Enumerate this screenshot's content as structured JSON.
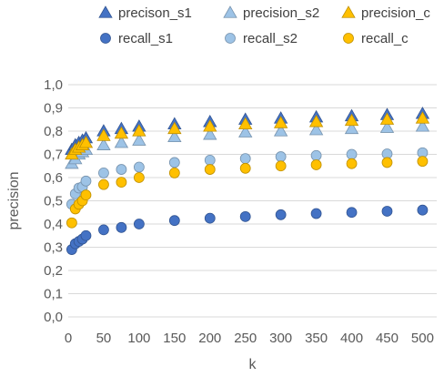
{
  "chart_data": {
    "type": "scatter",
    "title": "",
    "xlabel": "k",
    "ylabel": "precision",
    "xlim": [
      0,
      520
    ],
    "ylim": [
      0,
      1.0
    ],
    "x_ticks": [
      0,
      50,
      100,
      150,
      200,
      250,
      300,
      350,
      400,
      450,
      500
    ],
    "y_ticks": [
      "0,0",
      "0,1",
      "0,2",
      "0,3",
      "0,4",
      "0,5",
      "0,6",
      "0,7",
      "0,8",
      "0,9",
      "1,0"
    ],
    "grid": true,
    "legend_position": "top",
    "x": [
      5,
      10,
      15,
      20,
      25,
      50,
      75,
      100,
      150,
      200,
      250,
      300,
      350,
      400,
      450,
      500
    ],
    "series": [
      {
        "name": "precison_s1",
        "marker": "triangle",
        "color": "#4472c4",
        "values": [
          0.72,
          0.74,
          0.75,
          0.76,
          0.77,
          0.8,
          0.81,
          0.82,
          0.83,
          0.84,
          0.85,
          0.855,
          0.86,
          0.865,
          0.87,
          0.875
        ]
      },
      {
        "name": "precision_s2",
        "marker": "triangle",
        "color": "#9dc3e6",
        "values": [
          0.66,
          0.68,
          0.7,
          0.71,
          0.72,
          0.74,
          0.75,
          0.76,
          0.775,
          0.785,
          0.795,
          0.8,
          0.805,
          0.81,
          0.815,
          0.82
        ]
      },
      {
        "name": "precision_c",
        "marker": "triangle",
        "color": "#ffc000",
        "values": [
          0.7,
          0.72,
          0.73,
          0.74,
          0.75,
          0.78,
          0.79,
          0.8,
          0.81,
          0.82,
          0.83,
          0.835,
          0.84,
          0.845,
          0.85,
          0.855
        ]
      },
      {
        "name": "recall_s1",
        "marker": "circle",
        "color": "#4472c4",
        "values": [
          0.29,
          0.315,
          0.325,
          0.335,
          0.35,
          0.375,
          0.385,
          0.4,
          0.415,
          0.425,
          0.432,
          0.44,
          0.445,
          0.45,
          0.455,
          0.46
        ]
      },
      {
        "name": "recall_s2",
        "marker": "circle",
        "color": "#9dc3e6",
        "values": [
          0.485,
          0.53,
          0.555,
          0.56,
          0.585,
          0.62,
          0.635,
          0.645,
          0.665,
          0.675,
          0.682,
          0.69,
          0.695,
          0.7,
          0.702,
          0.707
        ]
      },
      {
        "name": "recall_c",
        "marker": "circle",
        "color": "#ffc000",
        "values": [
          0.405,
          0.465,
          0.485,
          0.5,
          0.525,
          0.57,
          0.58,
          0.6,
          0.62,
          0.635,
          0.64,
          0.65,
          0.655,
          0.66,
          0.665,
          0.67
        ]
      }
    ]
  }
}
